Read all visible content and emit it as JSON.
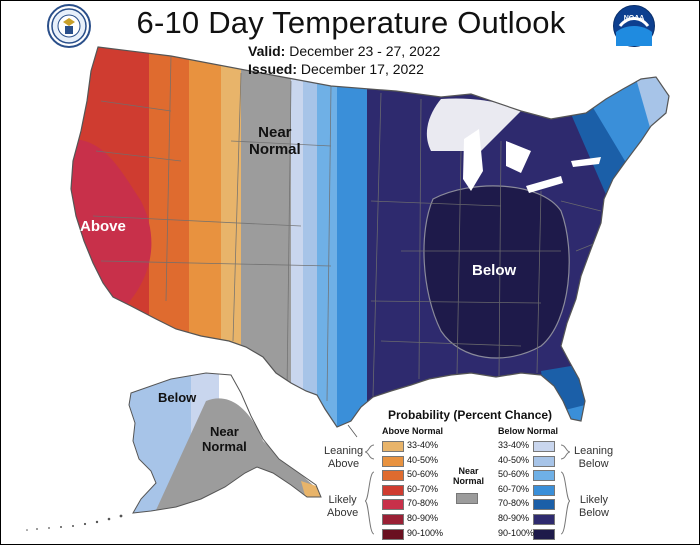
{
  "header": {
    "title": "6-10 Day Temperature Outlook",
    "valid_label": "Valid:",
    "valid_value": "December 23 - 27, 2022",
    "issued_label": "Issued:",
    "issued_value": "December 17, 2022",
    "left_logo": "doc-seal-icon",
    "right_logo": "noaa-logo-icon",
    "noaa_text": "NOAA"
  },
  "map_labels": {
    "near_normal": "Near\nNormal",
    "above": "Above",
    "below": "Below",
    "ak_below": "Below",
    "ak_near_normal": "Near\nNormal"
  },
  "legend": {
    "title": "Probability (Percent Chance)",
    "above_header": "Above Normal",
    "below_header": "Below Normal",
    "near_normal_label": "Near\nNormal",
    "leaning_above": "Leaning\nAbove",
    "likely_above": "Likely\nAbove",
    "leaning_below": "Leaning\nBelow",
    "likely_below": "Likely\nBelow",
    "above_bins": [
      {
        "label": "33-40%",
        "color": "#e8b46a"
      },
      {
        "label": "40-50%",
        "color": "#e8923f"
      },
      {
        "label": "50-60%",
        "color": "#df6b2f"
      },
      {
        "label": "60-70%",
        "color": "#cf3c30"
      },
      {
        "label": "70-80%",
        "color": "#c8304a"
      },
      {
        "label": "80-90%",
        "color": "#9a2035"
      },
      {
        "label": "90-100%",
        "color": "#6a1020"
      }
    ],
    "below_bins": [
      {
        "label": "33-40%",
        "color": "#c9d6ee"
      },
      {
        "label": "40-50%",
        "color": "#a7c4e8"
      },
      {
        "label": "50-60%",
        "color": "#6fb0e6"
      },
      {
        "label": "60-70%",
        "color": "#3a8fd9"
      },
      {
        "label": "70-80%",
        "color": "#1b5fa8"
      },
      {
        "label": "80-90%",
        "color": "#2e2a6e"
      },
      {
        "label": "90-100%",
        "color": "#1e1a4a"
      }
    ],
    "near_normal_color": "#9c9c9c"
  },
  "colors": {
    "outline": "#555555",
    "state_lines": "#6f6f6f",
    "lake": "#ffffff"
  }
}
